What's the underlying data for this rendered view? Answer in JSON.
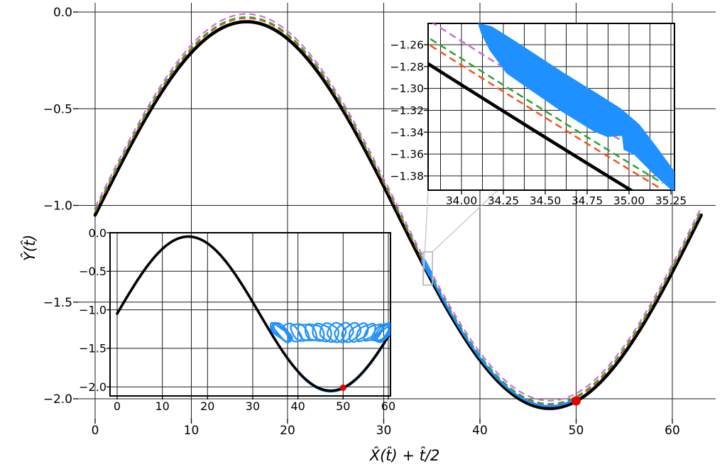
{
  "figure": {
    "background": "#ffffff"
  },
  "axis_labels": {
    "x": "X̂(t̂) + t̂/2",
    "y": "Ŷ(t̂)"
  },
  "colors": {
    "curve_black": "#000000",
    "dashed_orange": "#fa4f1e",
    "dashed_green": "#2ca32c",
    "dashed_magenta": "#cf6fd4",
    "oscillatory_blue": "#1e90ff",
    "marker_red": "#e60000",
    "grid": "#1c1c1c",
    "indicator_gray": "#b5b5b5",
    "connector_gray": "#c8c8c8"
  },
  "main_plot": {
    "x_tick_labels": [
      "0",
      "10",
      "20",
      "30",
      "40",
      "50",
      "60"
    ],
    "y_tick_labels": [
      "0.0",
      "−0.5",
      "−1.0",
      "−1.5",
      "−2.0"
    ]
  },
  "inset_overview": {
    "x_tick_labels": [
      "0",
      "10",
      "20",
      "30",
      "40",
      "50",
      "60"
    ],
    "y_tick_labels": [
      "0.0",
      "−0.5",
      "−1.0",
      "−1.5",
      "−2.0"
    ]
  },
  "inset_zoom": {
    "x_tick_labels": [
      "34.00",
      "34.25",
      "34.50",
      "34.75",
      "35.00",
      "35.25"
    ],
    "y_tick_labels": [
      "−1.26",
      "−1.28",
      "−1.30",
      "−1.32",
      "−1.34",
      "−1.36",
      "−1.38"
    ]
  },
  "chart_data": {
    "type": "line",
    "title": "",
    "xlabel": "X̂(t̂) + t̂/2",
    "ylabel": "Ŷ(t̂)",
    "main_axes": {
      "xlim": [
        -1.8,
        64.5
      ],
      "ylim": [
        -2.103,
        0.048
      ],
      "x_ticks": [
        0,
        10,
        20,
        30,
        40,
        50,
        60
      ],
      "y_ticks": [
        0,
        -0.5,
        -1,
        -1.5,
        -2
      ],
      "grid": true
    },
    "base_curve": {
      "offset": -1.05,
      "amplitude": 1.0,
      "period": 63,
      "x_range": [
        0,
        63
      ]
    },
    "series": [
      {
        "name": "solid-black-curve",
        "style": "solid",
        "y_offset": 0.0
      },
      {
        "name": "dashed-orange-curve",
        "style": "dashed",
        "y_offset": 0.018
      },
      {
        "name": "dashed-green-curve",
        "style": "dashed",
        "y_offset": 0.024
      },
      {
        "name": "dashed-magenta-curve",
        "style": "dashed",
        "y_offset": 0.04
      }
    ],
    "oscillatory_segment": {
      "x_range": [
        34.0,
        50.3
      ],
      "y_offset": 0.012,
      "blob_x_range": [
        34.12,
        35.02
      ],
      "blob_y_offset": 0.022
    },
    "marker_point": [
      50,
      -2.011
    ],
    "indicator_rect": {
      "x_range": [
        33.8,
        35.65
      ],
      "y_range": [
        -1.24,
        -1.39
      ]
    },
    "inset_overview": {
      "xlim": [
        -1.6,
        60.4
      ],
      "ylim": [
        -2.12,
        0.0
      ],
      "x_ticks": [
        0,
        10,
        20,
        30,
        40,
        50,
        60
      ],
      "y_ticks": [
        0,
        -0.5,
        -1,
        -1.5,
        -2
      ],
      "valley_blue_segment": {
        "x_range": [
          40.0,
          59.3
        ],
        "y_offset": -0.012
      },
      "marker_point": [
        50,
        -2.011
      ],
      "loops": {
        "y_center": -1.295,
        "x_start": 36.0,
        "x_end": 59.6,
        "rx": 2.05,
        "ry": 0.115,
        "mid_count": 12,
        "end_count": 3
      }
    },
    "inset_zoom": {
      "xlim": [
        33.8,
        35.27
      ],
      "ylim": [
        -1.3923,
        -1.2406
      ],
      "x_ticks": [
        34.0,
        34.25,
        34.5,
        34.75,
        35.0,
        35.25
      ],
      "x_grid_step": 0.125,
      "y_ticks": [
        -1.26,
        -1.28,
        -1.3,
        -1.32,
        -1.34,
        -1.36,
        -1.38
      ],
      "band_upper": [
        [
          34.1,
          -1.2405
        ],
        [
          34.18,
          -1.2435
        ],
        [
          34.3,
          -1.255
        ],
        [
          34.45,
          -1.27
        ],
        [
          34.62,
          -1.287
        ],
        [
          34.8,
          -1.304
        ],
        [
          34.95,
          -1.3185
        ],
        [
          35.06,
          -1.333
        ],
        [
          35.16,
          -1.353
        ],
        [
          35.27,
          -1.376
        ]
      ],
      "band_lower": [
        [
          35.27,
          -1.395
        ],
        [
          35.14,
          -1.377
        ],
        [
          35.03,
          -1.36
        ],
        [
          34.97,
          -1.356
        ],
        [
          34.96,
          -1.343
        ],
        [
          34.87,
          -1.344
        ],
        [
          34.79,
          -1.339
        ],
        [
          34.6,
          -1.321
        ],
        [
          34.42,
          -1.302
        ],
        [
          34.27,
          -1.286
        ],
        [
          34.17,
          -1.265
        ],
        [
          34.12,
          -1.25
        ]
      ]
    }
  }
}
